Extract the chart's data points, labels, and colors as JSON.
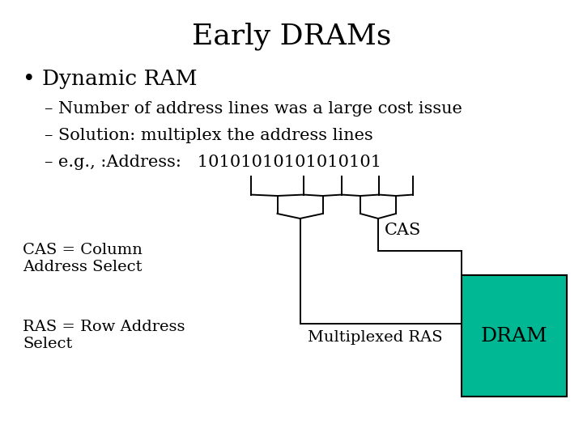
{
  "title": "Early DRAMs",
  "title_fontsize": 26,
  "title_font": "serif",
  "bg_color": "#ffffff",
  "text_color": "#000000",
  "bullet_text": "• Dynamic RAM",
  "bullet_fontsize": 19,
  "sub_bullets": [
    "– Number of address lines was a large cost issue",
    "– Solution: multiplex the address lines",
    "– e.g., :Address:   10101010101010101"
  ],
  "sub_bullet_fontsize": 15,
  "cas_label": "CAS",
  "cas_label_fontsize": 15,
  "dram_label": "DRAM",
  "dram_color": "#00b894",
  "dram_fontsize": 18,
  "multiplexed_label": "Multiplexed RAS",
  "multiplexed_fontsize": 14,
  "cas_def": "CAS = Column\nAddress Select",
  "cas_def_fontsize": 14,
  "ras_def": "RAS = Row Address\nSelect",
  "ras_def_fontsize": 14,
  "lw": 1.4
}
